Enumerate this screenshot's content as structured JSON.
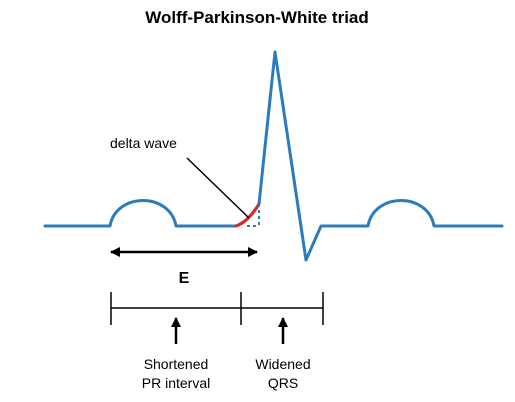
{
  "title": "Wolff-Parkinson-White triad",
  "labels": {
    "delta_wave": "delta wave",
    "pr_marker": "E",
    "pr_interval_line1": "Shortened",
    "pr_interval_line2": "PR interval",
    "qrs_line1": "Widened",
    "qrs_line2": "QRS"
  },
  "colors": {
    "ecg_trace": "#2b7bbf",
    "delta_wave": "#e02424",
    "annotation": "#000000"
  }
}
